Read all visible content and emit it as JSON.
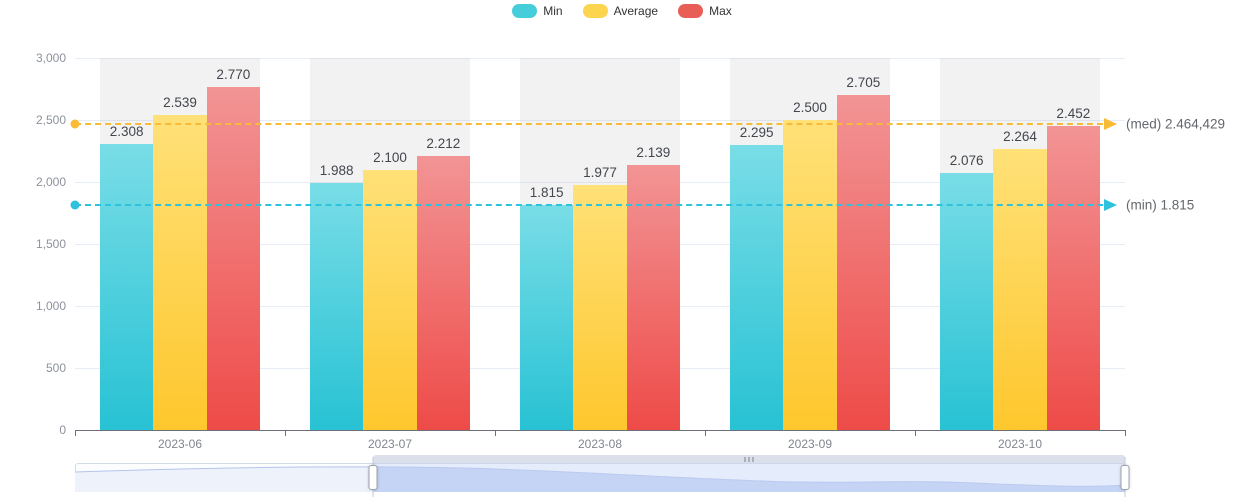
{
  "chart_data": {
    "type": "bar",
    "title": "",
    "categories": [
      "2023-06",
      "2023-07",
      "2023-08",
      "2023-09",
      "2023-10"
    ],
    "series": [
      {
        "name": "Min",
        "values": [
          2308,
          1988,
          1815,
          2295,
          2076
        ],
        "value_labels": [
          "2.308",
          "1.988",
          "1.815",
          "2.295",
          "2.076"
        ],
        "legend_color": "#45cdda",
        "gradient_top": "#79dde7",
        "gradient_bottom": "#27c2d4"
      },
      {
        "name": "Average",
        "values": [
          2539,
          2100,
          1977,
          2500,
          2264
        ],
        "value_labels": [
          "2.539",
          "2.100",
          "1.977",
          "2.500",
          "2.264"
        ],
        "legend_color": "#fdd44d",
        "gradient_top": "#ffe178",
        "gradient_bottom": "#fec72d"
      },
      {
        "name": "Max",
        "values": [
          2770,
          2212,
          2139,
          2705,
          2452
        ],
        "value_labels": [
          "2.770",
          "2.212",
          "2.139",
          "2.705",
          "2.452"
        ],
        "legend_color": "#e85d55",
        "gradient_top": "#f29495",
        "gradient_bottom": "#ee4b48"
      }
    ],
    "ylim": [
      0,
      3000
    ],
    "y_axis_ticks": [
      "0",
      "500",
      "1,000",
      "1,500",
      "2,000",
      "2,500",
      "3,000"
    ],
    "y_tick_step": 500,
    "grid": true,
    "legend_position": "top-center",
    "mark_lines": [
      {
        "name": "med",
        "label": "(med) 2.464,429",
        "value": 2464.429,
        "color": "#f8bb37"
      },
      {
        "name": "min",
        "label": "(min) 1.815",
        "value": 1815,
        "color": "#2fc2dc"
      }
    ]
  },
  "data_zoom": {
    "selected_start_pct": 28.4,
    "selected_end_pct": 100
  }
}
